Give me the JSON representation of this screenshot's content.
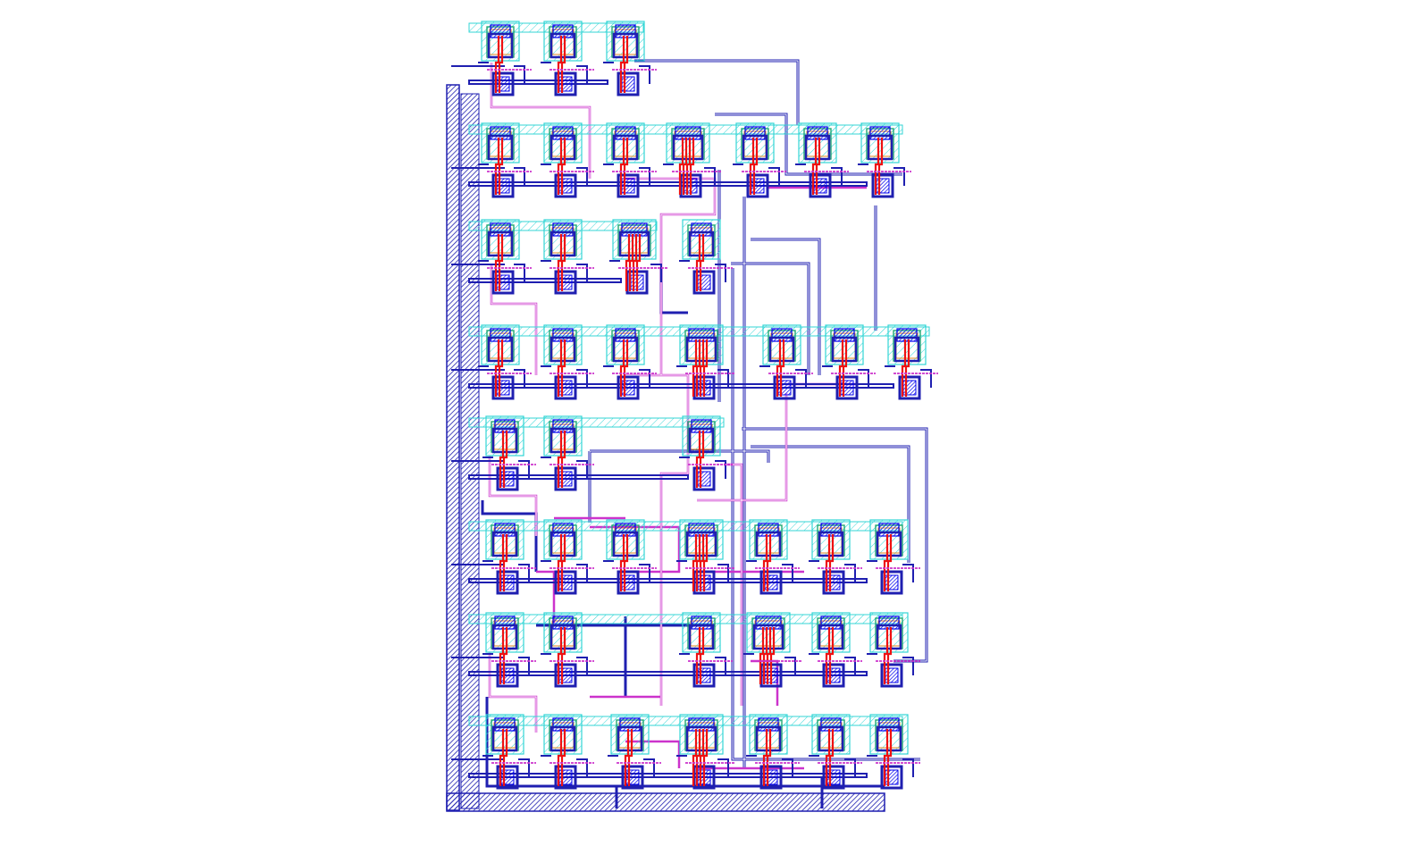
{
  "view": {
    "type": "ic-layout-viewer",
    "background": "#ffffff"
  },
  "layers": [
    {
      "name": "metal1",
      "color": "#1f1fb0",
      "style": "hatched"
    },
    {
      "name": "metal2",
      "color": "#cc33cc",
      "style": "hatched"
    },
    {
      "name": "poly",
      "color": "#ee1111",
      "style": "solid"
    },
    {
      "name": "nwell",
      "color": "#33d6d6",
      "style": "hatched"
    },
    {
      "name": "active",
      "color": "#22a872",
      "style": "outline"
    },
    {
      "name": "pimplant",
      "color": "#e08a20",
      "style": "outline"
    },
    {
      "name": "contact",
      "color": "#0000ee",
      "style": "filled"
    }
  ],
  "rows": [
    {
      "cells": 3
    },
    {
      "cells": 7
    },
    {
      "cells": 4
    },
    {
      "cells": 7
    },
    {
      "cells": 3
    },
    {
      "cells": 7
    },
    {
      "cells": 6
    },
    {
      "cells": 7
    }
  ],
  "colors": {
    "metal1": "#1f1fb0",
    "metal2": "#cc33cc",
    "poly": "#ee1111",
    "nwell": "#33d6d6",
    "active": "#22a872",
    "implant": "#e08a20",
    "contact": "#0000ee"
  }
}
